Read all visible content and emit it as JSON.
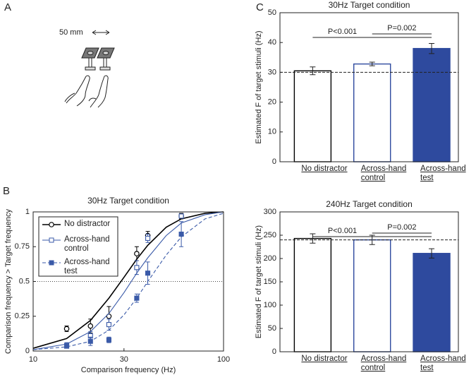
{
  "panel_a": {
    "label": "A",
    "scale_label": "50 mm"
  },
  "chart_data": [
    {
      "type": "line",
      "panel_label": "B",
      "title": "30Hz Target condition",
      "xlabel": "Comparison frequency (Hz)",
      "ylabel": "Comparison frequency > Target frequency",
      "log_x": true,
      "xlim": [
        10,
        100
      ],
      "xticks": [
        10,
        30,
        100
      ],
      "ylim": [
        0,
        1
      ],
      "yticks": [
        0,
        0.25,
        0.5,
        0.75,
        1
      ],
      "hline": 0.5,
      "legend": "upper left",
      "x": [
        15,
        20,
        25,
        35,
        40,
        60
      ],
      "fit_x": [
        10,
        15,
        20,
        25,
        30,
        35,
        40,
        50,
        60,
        80,
        100
      ],
      "series": [
        {
          "name": "No distractor",
          "color": "#000000",
          "marker": "open-circle",
          "linestyle": "solid",
          "values": [
            0.16,
            0.18,
            0.25,
            0.7,
            0.83,
            0.97
          ],
          "errors": [
            0.02,
            0.05,
            0.07,
            0.05,
            0.03,
            0.02
          ],
          "fit_values": [
            0.02,
            0.09,
            0.22,
            0.38,
            0.53,
            0.66,
            0.76,
            0.89,
            0.95,
            0.99,
            1.0
          ]
        },
        {
          "name": "Across-hand control",
          "color": "#3a5aa8",
          "marker": "open-square",
          "linestyle": "solid",
          "values": [
            0.04,
            0.11,
            0.19,
            0.6,
            0.81,
            0.97
          ],
          "errors": [
            0.02,
            0.03,
            0.04,
            0.05,
            0.03,
            0.01
          ],
          "fit_values": [
            0.01,
            0.05,
            0.14,
            0.27,
            0.42,
            0.56,
            0.67,
            0.83,
            0.92,
            0.98,
            1.0
          ]
        },
        {
          "name": "Across-hand test",
          "color": "#3a5aa8",
          "marker": "filled-square",
          "linestyle": "dashed",
          "values": [
            0.035,
            0.07,
            0.08,
            0.38,
            0.56,
            0.84
          ],
          "errors": [
            0.01,
            0.03,
            0.02,
            0.03,
            0.08,
            0.09
          ],
          "fit_values": [
            0.01,
            0.03,
            0.07,
            0.15,
            0.26,
            0.38,
            0.5,
            0.69,
            0.82,
            0.95,
            0.99
          ]
        }
      ]
    },
    {
      "type": "bar",
      "panel_label": "C",
      "title": "30Hz Target condition",
      "ylabel": "Estimated F of target stimuli (Hz)",
      "categories": [
        "No distractor",
        "Across-hand control",
        "Across-hand test"
      ],
      "values": [
        30.5,
        32.8,
        38
      ],
      "errors": [
        1.3,
        0.6,
        1.7
      ],
      "colors": [
        "#ffffff",
        "#ffffff",
        "#2e4a9e"
      ],
      "edge_colors": [
        "#000000",
        "#2e4a9e",
        "#2e4a9e"
      ],
      "ylim": [
        0,
        50
      ],
      "yticks": [
        0,
        10,
        20,
        30,
        40,
        50
      ],
      "hline": 30,
      "annotations": [
        "P<0.001",
        "P=0.002"
      ]
    },
    {
      "type": "bar",
      "title": "240Hz Target condition",
      "ylabel": "Estimated F of target stimuli (Hz)",
      "categories": [
        "No distractor",
        "Across-hand control",
        "Across-hand test"
      ],
      "values": [
        243,
        240,
        211
      ],
      "errors": [
        10,
        10,
        10
      ],
      "colors": [
        "#ffffff",
        "#ffffff",
        "#2e4a9e"
      ],
      "edge_colors": [
        "#000000",
        "#2e4a9e",
        "#2e4a9e"
      ],
      "ylim": [
        0,
        300
      ],
      "yticks": [
        0,
        50,
        100,
        150,
        200,
        250,
        300
      ],
      "hline": 240,
      "annotations": [
        "P<0.001",
        "P=0.002"
      ]
    }
  ]
}
